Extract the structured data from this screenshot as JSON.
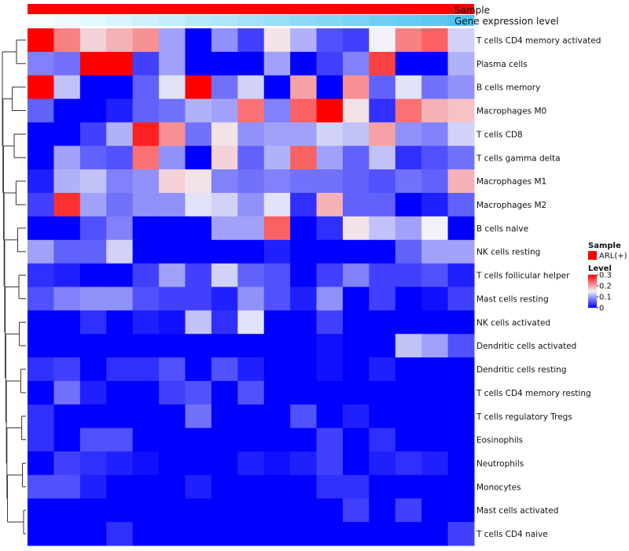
{
  "chart_data": {
    "type": "heatmap",
    "title": "",
    "annotations": {
      "sample_label": "Sample",
      "gene_label": "Gene expression level",
      "sample_color": "#ff0000",
      "gene_gradient": [
        "#f7ffff",
        "#4fc4f0"
      ]
    },
    "rows": [
      "T cells CD4 memory activated",
      "Plasma cells",
      "B cells memory",
      "Macrophages M0",
      "T cells CD8",
      "T cells gamma delta",
      "Macrophages M1",
      "Macrophages M2",
      "B cells naive",
      "NK cells resting",
      "T cells follicular helper",
      "Mast cells resting",
      "NK cells activated",
      "Dendritic cells activated",
      "Dendritic cells resting",
      "T cells CD4 memory resting",
      "T cells regulatory  Tregs",
      "Eosinophils",
      "Neutrophils",
      "Monocytes",
      "Mast cells activated",
      "T cells CD4 naive"
    ],
    "values": [
      [
        0.3,
        0.22,
        0.17,
        0.19,
        0.21,
        0.1,
        0.0,
        0.09,
        0.04,
        0.16,
        0.11,
        0.05,
        0.04,
        0.15,
        0.22,
        0.24,
        0.13
      ],
      [
        0.08,
        0.07,
        0.3,
        0.3,
        0.04,
        0.1,
        0.0,
        0.0,
        0.0,
        0.1,
        0.0,
        0.04,
        0.08,
        0.26,
        0.0,
        0.0,
        0.11
      ],
      [
        0.3,
        0.12,
        0.0,
        0.0,
        0.06,
        0.14,
        0.3,
        0.07,
        0.13,
        0.0,
        0.2,
        0.0,
        0.21,
        0.06,
        0.14,
        0.07,
        0.09
      ],
      [
        0.06,
        0.0,
        0.0,
        0.02,
        0.06,
        0.07,
        0.11,
        0.1,
        0.23,
        0.08,
        0.24,
        0.3,
        0.16,
        0.03,
        0.23,
        0.19,
        0.18
      ],
      [
        0.0,
        0.0,
        0.04,
        0.11,
        0.28,
        0.21,
        0.07,
        0.16,
        0.09,
        0.1,
        0.1,
        0.13,
        0.12,
        0.2,
        0.09,
        0.08,
        0.13
      ],
      [
        0.0,
        0.1,
        0.06,
        0.05,
        0.23,
        0.09,
        0.0,
        0.17,
        0.06,
        0.11,
        0.24,
        0.1,
        0.06,
        0.12,
        0.03,
        0.05,
        0.07
      ],
      [
        0.02,
        0.11,
        0.12,
        0.08,
        0.09,
        0.17,
        0.16,
        0.08,
        0.07,
        0.08,
        0.07,
        0.07,
        0.06,
        0.05,
        0.07,
        0.06,
        0.19
      ],
      [
        0.04,
        0.27,
        0.1,
        0.07,
        0.09,
        0.09,
        0.14,
        0.13,
        0.09,
        0.14,
        0.03,
        0.19,
        0.06,
        0.06,
        0.0,
        0.02,
        0.06
      ],
      [
        0.0,
        0.0,
        0.05,
        0.08,
        0.0,
        0.0,
        0.0,
        0.1,
        0.1,
        0.24,
        0.0,
        0.03,
        0.16,
        0.12,
        0.1,
        0.15,
        0.0
      ],
      [
        0.1,
        0.06,
        0.06,
        0.13,
        0.0,
        0.0,
        0.0,
        0.0,
        0.0,
        0.02,
        0.0,
        0.0,
        0.0,
        0.0,
        0.06,
        0.1,
        0.1
      ],
      [
        0.03,
        0.02,
        0.0,
        0.0,
        0.04,
        0.1,
        0.04,
        0.13,
        0.06,
        0.05,
        0.0,
        0.04,
        0.08,
        0.04,
        0.04,
        0.05,
        0.02
      ],
      [
        0.05,
        0.08,
        0.09,
        0.09,
        0.05,
        0.04,
        0.04,
        0.02,
        0.09,
        0.05,
        0.02,
        0.09,
        0.0,
        0.04,
        0.0,
        0.01,
        0.04
      ],
      [
        0.0,
        0.0,
        0.03,
        0.0,
        0.02,
        0.01,
        0.12,
        0.03,
        0.14,
        0.0,
        0.0,
        0.04,
        0.0,
        0.0,
        0.0,
        0.0,
        0.0
      ],
      [
        0.0,
        0.0,
        0.0,
        0.0,
        0.0,
        0.0,
        0.0,
        0.0,
        0.0,
        0.0,
        0.0,
        0.01,
        0.0,
        0.0,
        0.12,
        0.1,
        0.05
      ],
      [
        0.03,
        0.04,
        0.0,
        0.03,
        0.03,
        0.05,
        0.0,
        0.05,
        0.02,
        0.0,
        0.0,
        0.01,
        0.0,
        0.02,
        0.0,
        0.0,
        0.0
      ],
      [
        0.0,
        0.07,
        0.02,
        0.0,
        0.0,
        0.04,
        0.05,
        0.0,
        0.05,
        0.0,
        0.0,
        0.0,
        0.0,
        0.0,
        0.0,
        0.0,
        0.0
      ],
      [
        0.03,
        0.0,
        0.0,
        0.0,
        0.0,
        0.0,
        0.07,
        0.0,
        0.0,
        0.0,
        0.05,
        0.0,
        0.02,
        0.0,
        0.0,
        0.0,
        0.0
      ],
      [
        0.03,
        0.0,
        0.05,
        0.05,
        0.0,
        0.0,
        0.0,
        0.0,
        0.0,
        0.0,
        0.0,
        0.04,
        0.0,
        0.03,
        0.0,
        0.0,
        0.0
      ],
      [
        0.0,
        0.04,
        0.03,
        0.02,
        0.01,
        0.0,
        0.0,
        0.0,
        0.02,
        0.01,
        0.02,
        0.04,
        0.0,
        0.02,
        0.03,
        0.02,
        0.0
      ],
      [
        0.05,
        0.05,
        0.02,
        0.0,
        0.0,
        0.0,
        0.02,
        0.0,
        0.0,
        0.0,
        0.0,
        0.03,
        0.03,
        0.0,
        0.0,
        0.0,
        0.0
      ],
      [
        0.0,
        0.0,
        0.0,
        0.0,
        0.0,
        0.0,
        0.0,
        0.0,
        0.0,
        0.0,
        0.0,
        0.0,
        0.04,
        0.0,
        0.04,
        0.0,
        0.0
      ],
      [
        0.0,
        0.0,
        0.0,
        0.03,
        0.0,
        0.0,
        0.0,
        0.0,
        0.0,
        0.0,
        0.0,
        0.0,
        0.0,
        0.0,
        0.0,
        0.0,
        0.04
      ]
    ],
    "color_scale": {
      "min": 0,
      "max": 0.3,
      "low_color": "#0000ff",
      "mid_color": "#f2f2f8",
      "high_color": "#ff0000",
      "mid_value": 0.15
    },
    "legend": {
      "sample_title": "Sample",
      "sample_entry": "ARL(+)",
      "level_title": "Level",
      "ticks": [
        "0.3",
        "0.2",
        "0.1",
        "0"
      ],
      "tick_values": [
        0.3,
        0.2,
        0.1,
        0
      ]
    },
    "dendrogram": {
      "order": [
        0,
        1,
        2,
        3,
        4,
        5,
        6,
        7,
        8,
        9,
        10,
        11,
        12,
        13,
        14,
        15,
        16,
        17,
        18,
        19,
        20,
        21
      ],
      "merges": [
        [
          0,
          1,
          0.4
        ],
        [
          2,
          3,
          0.58
        ],
        [
          4,
          5,
          0.5
        ],
        [
          6,
          7,
          0.42
        ],
        [
          8,
          9,
          0.35
        ],
        [
          10,
          11,
          0.3
        ],
        [
          12,
          13,
          0.28
        ],
        [
          14,
          15,
          0.22
        ],
        [
          16,
          17,
          0.18
        ],
        [
          18,
          19,
          0.15
        ],
        [
          20,
          21,
          0.1
        ]
      ]
    }
  }
}
